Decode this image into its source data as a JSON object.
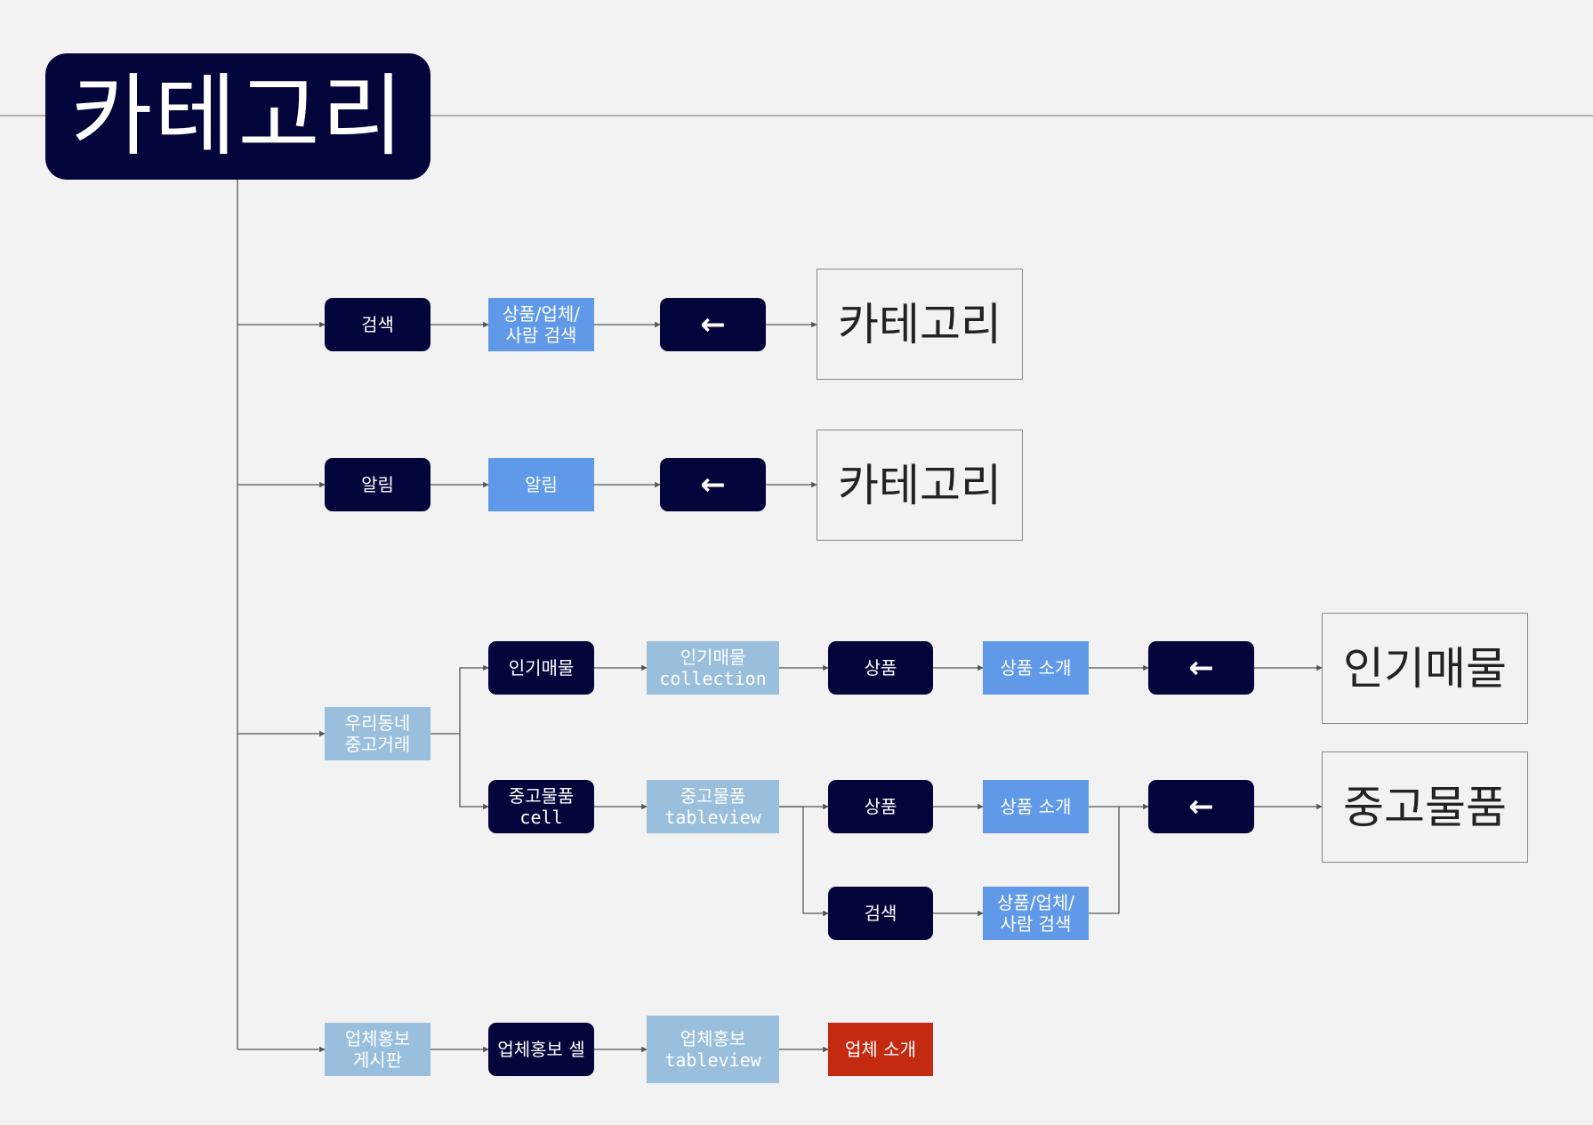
{
  "title": "카테고리",
  "colors": {
    "dark_node": "#04053a",
    "blue_node": "#6199e9",
    "light_blue_node": "#99bfdd",
    "red_node": "#c42a10",
    "background": "#f2f2f2",
    "line": "#555555"
  },
  "rows": {
    "search": {
      "button": "검색",
      "view": "상품/업체/\n사람 검색",
      "back_icon": "←",
      "screen": "카테고리"
    },
    "notification": {
      "button": "알림",
      "view": "알림",
      "back_icon": "←",
      "screen": "카테고리"
    },
    "used_trade": {
      "entry": "우리동네\n중고거래",
      "popular": {
        "button": "인기매물",
        "view": "인기매물\ncollection",
        "item": "상품",
        "detail": "상품 소개",
        "back_icon": "←",
        "screen": "인기매물"
      },
      "used_goods": {
        "cell": "중고물품\ncell",
        "view": "중고물품\ntableview",
        "item": "상품",
        "detail": "상품 소개",
        "search": "검색",
        "search_view": "상품/업체/\n사람 검색",
        "back_icon": "←",
        "screen": "중고물품"
      }
    },
    "company_promo": {
      "entry": "업체홍보\n게시판",
      "cell": "업체홍보 셀",
      "view": "업체홍보\ntableview",
      "detail": "업체 소개"
    }
  }
}
